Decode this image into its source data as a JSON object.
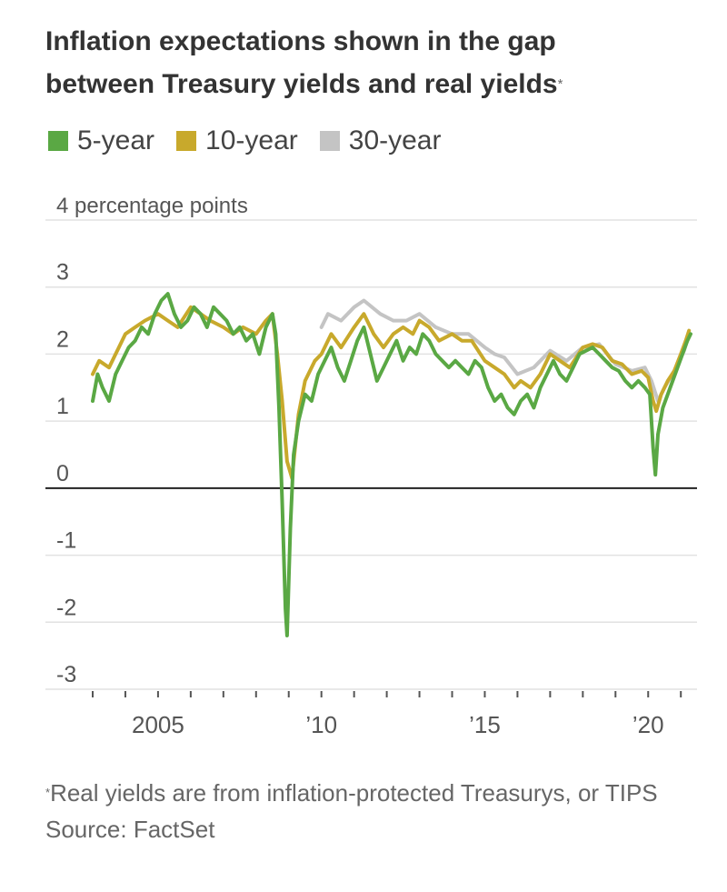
{
  "title": {
    "line1": "Inflation expectations shown in the gap",
    "line2": "between Treasury yields and real yields",
    "footnote_mark": "*"
  },
  "legend": [
    {
      "label": "5-year",
      "color": "#5aa844"
    },
    {
      "label": "10-year",
      "color": "#c8a92c"
    },
    {
      "label": "30-year",
      "color": "#c4c4c4"
    }
  ],
  "footer": {
    "note_mark": "*",
    "note": "Real yields are from inflation-protected Treasurys, or TIPS",
    "source": "Source: FactSet"
  },
  "chart_data": {
    "type": "line",
    "title": "Inflation expectations shown in the gap between Treasury yields and real yields",
    "ylabel": "percentage points",
    "ylim": [
      -3,
      4
    ],
    "yticks": [
      4,
      3,
      2,
      1,
      0,
      -1,
      -2,
      -3
    ],
    "ytick_labels": [
      "4 percentage points",
      "3",
      "2",
      "1",
      "0",
      "-1",
      "-2",
      "-3"
    ],
    "xlim": [
      2003.0,
      2021.3
    ],
    "xticks": [
      2005,
      2010,
      2015,
      2020
    ],
    "xtick_labels": [
      "2005",
      "’10",
      "’15",
      "’20"
    ],
    "grid": true,
    "series": [
      {
        "name": "30-year",
        "color": "#c4c4c4",
        "x": [
          2010.0,
          2010.2,
          2010.6,
          2011.0,
          2011.3,
          2011.8,
          2012.2,
          2012.6,
          2013.0,
          2013.5,
          2014.0,
          2014.5,
          2015.0,
          2015.3,
          2015.6,
          2016.0,
          2016.5,
          2017.0,
          2017.5,
          2018.0,
          2018.5,
          2019.0,
          2019.5,
          2019.9,
          2020.1,
          2020.3,
          2020.5,
          2020.8,
          2021.1,
          2021.25
        ],
        "y": [
          2.4,
          2.6,
          2.5,
          2.7,
          2.8,
          2.6,
          2.5,
          2.5,
          2.6,
          2.4,
          2.3,
          2.3,
          2.1,
          2.0,
          1.95,
          1.7,
          1.8,
          2.05,
          1.9,
          2.1,
          2.15,
          1.85,
          1.75,
          1.8,
          1.6,
          1.3,
          1.5,
          1.75,
          2.05,
          2.3
        ]
      },
      {
        "name": "10-year",
        "color": "#c8a92c",
        "x": [
          2003.0,
          2003.2,
          2003.5,
          2003.8,
          2004.0,
          2004.3,
          2004.6,
          2005.0,
          2005.3,
          2005.6,
          2006.0,
          2006.3,
          2006.6,
          2007.0,
          2007.3,
          2007.6,
          2008.0,
          2008.3,
          2008.5,
          2008.65,
          2008.8,
          2008.95,
          2009.1,
          2009.3,
          2009.5,
          2009.8,
          2010.0,
          2010.3,
          2010.6,
          2011.0,
          2011.3,
          2011.6,
          2011.9,
          2012.2,
          2012.5,
          2012.8,
          2013.0,
          2013.3,
          2013.6,
          2014.0,
          2014.3,
          2014.6,
          2015.0,
          2015.3,
          2015.6,
          2015.9,
          2016.1,
          2016.4,
          2016.7,
          2017.0,
          2017.3,
          2017.6,
          2018.0,
          2018.3,
          2018.6,
          2018.9,
          2019.2,
          2019.5,
          2019.8,
          2020.0,
          2020.15,
          2020.25,
          2020.4,
          2020.6,
          2020.8,
          2021.0,
          2021.15,
          2021.25
        ],
        "y": [
          1.7,
          1.9,
          1.8,
          2.1,
          2.3,
          2.4,
          2.5,
          2.6,
          2.5,
          2.4,
          2.7,
          2.6,
          2.5,
          2.4,
          2.3,
          2.4,
          2.3,
          2.5,
          2.6,
          2.0,
          1.3,
          0.4,
          0.15,
          1.1,
          1.6,
          1.9,
          2.0,
          2.3,
          2.1,
          2.4,
          2.6,
          2.3,
          2.1,
          2.3,
          2.4,
          2.3,
          2.5,
          2.4,
          2.2,
          2.3,
          2.2,
          2.2,
          1.9,
          1.8,
          1.7,
          1.5,
          1.6,
          1.5,
          1.7,
          2.0,
          1.9,
          1.8,
          2.1,
          2.15,
          2.1,
          1.9,
          1.85,
          1.7,
          1.75,
          1.65,
          1.3,
          1.15,
          1.4,
          1.6,
          1.75,
          2.0,
          2.2,
          2.35
        ]
      },
      {
        "name": "5-year",
        "color": "#5aa844",
        "x": [
          2003.0,
          2003.15,
          2003.3,
          2003.5,
          2003.7,
          2003.9,
          2004.1,
          2004.3,
          2004.5,
          2004.7,
          2004.9,
          2005.1,
          2005.3,
          2005.5,
          2005.7,
          2005.9,
          2006.1,
          2006.3,
          2006.5,
          2006.7,
          2006.9,
          2007.1,
          2007.3,
          2007.5,
          2007.7,
          2007.9,
          2008.1,
          2008.3,
          2008.5,
          2008.6,
          2008.7,
          2008.8,
          2008.85,
          2008.9,
          2008.95,
          2009.05,
          2009.15,
          2009.3,
          2009.5,
          2009.7,
          2009.9,
          2010.1,
          2010.3,
          2010.5,
          2010.7,
          2010.9,
          2011.1,
          2011.3,
          2011.5,
          2011.7,
          2011.9,
          2012.1,
          2012.3,
          2012.5,
          2012.7,
          2012.9,
          2013.1,
          2013.3,
          2013.5,
          2013.7,
          2013.9,
          2014.1,
          2014.3,
          2014.5,
          2014.7,
          2014.9,
          2015.1,
          2015.3,
          2015.5,
          2015.7,
          2015.9,
          2016.1,
          2016.3,
          2016.5,
          2016.7,
          2016.9,
          2017.1,
          2017.3,
          2017.5,
          2017.7,
          2017.9,
          2018.1,
          2018.3,
          2018.5,
          2018.7,
          2018.9,
          2019.1,
          2019.3,
          2019.5,
          2019.7,
          2019.9,
          2020.05,
          2020.15,
          2020.22,
          2020.3,
          2020.45,
          2020.6,
          2020.75,
          2020.9,
          2021.05,
          2021.2,
          2021.3
        ],
        "y": [
          1.3,
          1.7,
          1.5,
          1.3,
          1.7,
          1.9,
          2.1,
          2.2,
          2.4,
          2.3,
          2.6,
          2.8,
          2.9,
          2.6,
          2.4,
          2.5,
          2.7,
          2.6,
          2.4,
          2.7,
          2.6,
          2.5,
          2.3,
          2.4,
          2.2,
          2.3,
          2.0,
          2.4,
          2.6,
          2.3,
          1.2,
          -0.2,
          -1.0,
          -1.8,
          -2.2,
          -0.6,
          0.5,
          1.0,
          1.4,
          1.3,
          1.7,
          1.9,
          2.1,
          1.8,
          1.6,
          1.9,
          2.2,
          2.4,
          2.0,
          1.6,
          1.8,
          2.0,
          2.2,
          1.9,
          2.1,
          2.0,
          2.3,
          2.2,
          2.0,
          1.9,
          1.8,
          1.9,
          1.8,
          1.7,
          1.9,
          1.8,
          1.5,
          1.3,
          1.4,
          1.2,
          1.1,
          1.3,
          1.4,
          1.2,
          1.5,
          1.7,
          1.9,
          1.7,
          1.6,
          1.8,
          2.0,
          2.05,
          2.1,
          2.0,
          1.9,
          1.8,
          1.75,
          1.6,
          1.5,
          1.6,
          1.5,
          1.4,
          0.6,
          0.2,
          0.8,
          1.2,
          1.4,
          1.6,
          1.8,
          2.0,
          2.2,
          2.3
        ]
      }
    ]
  }
}
